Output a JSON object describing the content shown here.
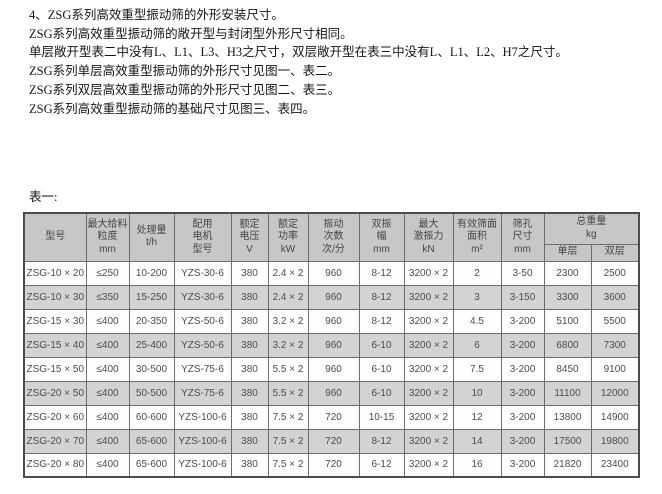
{
  "page": {
    "intro_lines": [
      "4、ZSG系列高效重型振动筛的外形安装尺寸。",
      "ZSG系列高效重型振动筛的敞开型与封闭型外形尺寸相同。",
      "单层敞开型表二中没有L、L1、L3、H3之尺寸，双层敞开型在表三中没有L、L1、L2、H7之尺寸。",
      "ZSG系列单层高效重型振动筛的外形尺寸见图一、表二。",
      "ZSG系列双层高效重型振动筛的外形尺寸见图二、表三。",
      "ZSG系列高效重型振动筛的基础尺寸见图三、表四。"
    ],
    "table_label": "表一:"
  },
  "table": {
    "headers": [
      {
        "id": "model",
        "lines": [
          "型号"
        ]
      },
      {
        "id": "feed-size",
        "lines": [
          "最大给料",
          "粒度",
          "mm"
        ]
      },
      {
        "id": "capacity",
        "lines": [
          "处理量",
          "t/h"
        ]
      },
      {
        "id": "motor",
        "lines": [
          "配用",
          "电机",
          "型号"
        ]
      },
      {
        "id": "voltage",
        "lines": [
          "额定",
          "电压",
          "V"
        ]
      },
      {
        "id": "power",
        "lines": [
          "额定",
          "功率",
          "kW"
        ]
      },
      {
        "id": "frequency",
        "lines": [
          "振动",
          "次数",
          "次/分"
        ]
      },
      {
        "id": "amplitude",
        "lines": [
          "双振",
          "幅",
          "mm"
        ]
      },
      {
        "id": "force",
        "lines": [
          "最大",
          "激振力",
          "kN"
        ]
      },
      {
        "id": "area",
        "lines": [
          "有效筛面",
          "面积",
          "m²"
        ]
      },
      {
        "id": "mesh",
        "lines": [
          "筛孔",
          "尺寸",
          "mm"
        ]
      }
    ],
    "weight_group": {
      "lines": [
        "总重量",
        "kg"
      ],
      "sub": [
        "单层",
        "双层"
      ]
    },
    "rows": [
      [
        "ZSG-10 × 20",
        "≤250",
        "10-200",
        "YZS-30-6",
        "380",
        "2.4 × 2",
        "960",
        "8-12",
        "3200 × 2",
        "2",
        "3-50",
        "2300",
        "2500"
      ],
      [
        "ZSG-10 × 30",
        "≤350",
        "15-250",
        "YZS-30-6",
        "380",
        "2.4 × 2",
        "960",
        "8-12",
        "3200 × 2",
        "3",
        "3-150",
        "3300",
        "3600"
      ],
      [
        "ZSG-15 × 30",
        "≤400",
        "20-350",
        "YZS-50-6",
        "380",
        "3.2 × 2",
        "960",
        "8-12",
        "3200 × 2",
        "4.5",
        "3-200",
        "5100",
        "5500"
      ],
      [
        "ZSG-15 × 40",
        "≤400",
        "25-400",
        "YZS-50-6",
        "380",
        "3.2 × 2",
        "960",
        "6-10",
        "3200 × 2",
        "6",
        "3-200",
        "6800",
        "7300"
      ],
      [
        "ZSG-15 × 50",
        "≤400",
        "30-500",
        "YZS-75-6",
        "380",
        "5.5 × 2",
        "960",
        "6-10",
        "3200 × 2",
        "7.5",
        "3-200",
        "8450",
        "9100"
      ],
      [
        "ZSG-20 × 50",
        "≤400",
        "50-500",
        "YZS-75-6",
        "380",
        "5.5 × 2",
        "960",
        "6-10",
        "3200 × 2",
        "10",
        "3-200",
        "11100",
        "12000"
      ],
      [
        "ZSG-20 × 60",
        "≤400",
        "60-600",
        "YZS-100-6",
        "380",
        "7.5 × 2",
        "720",
        "10-15",
        "3200 × 2",
        "12",
        "3-200",
        "13800",
        "14900"
      ],
      [
        "ZSG-20 × 70",
        "≤400",
        "65-600",
        "YZS-100-6",
        "380",
        "7.5 × 2",
        "720",
        "8-12",
        "3200 × 2",
        "14",
        "3-200",
        "17500",
        "19800"
      ],
      [
        "ZSG-20 × 80",
        "≤400",
        "65-600",
        "YZS-100-6",
        "380",
        "7.5 × 2",
        "720",
        "6-12",
        "3200 × 2",
        "16",
        "3-200",
        "21820",
        "23400"
      ]
    ]
  }
}
